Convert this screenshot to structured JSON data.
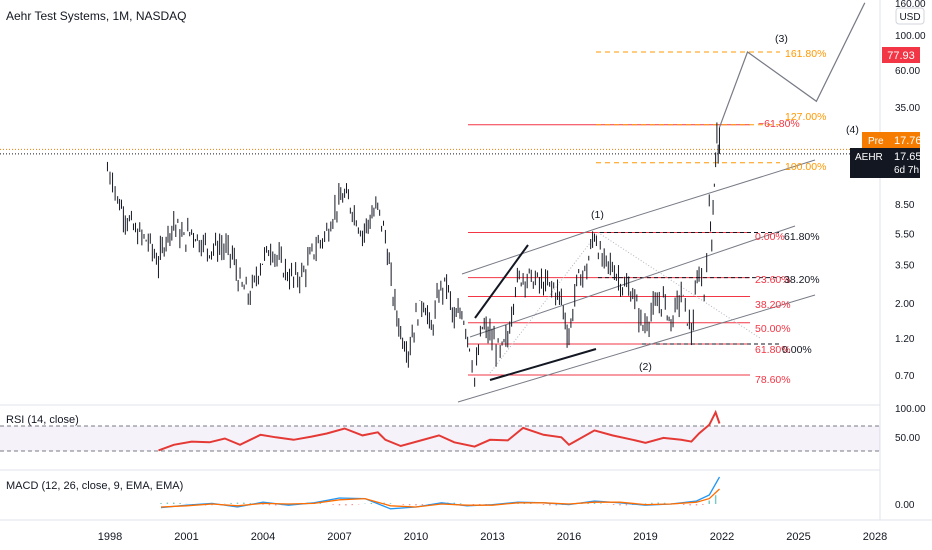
{
  "header": {
    "title": "Aehr Test Systems, 1M, NASDAQ"
  },
  "currency_badge": "USD",
  "price_tags": [
    {
      "label": "",
      "value": "77.93",
      "bg": "#f23645",
      "fg": "#ffffff"
    },
    {
      "label": "Pre",
      "value": "17.76",
      "bg": "#f57c00",
      "fg": "#ffffff"
    },
    {
      "label": "AEHR",
      "value": "17.65",
      "sub": "6d 7h",
      "bg": "#131722",
      "fg": "#ffffff"
    }
  ],
  "fib_labels": {
    "ext_161": "161.80%",
    "ext_127": "127.00%",
    "ext_100": "100.00%",
    "ret_m618": "−61.80%",
    "ret_0": "0.00%",
    "ret_236": "23.60%",
    "ret_382": "38.20%",
    "ret_50": "50.00%",
    "ret_618": "61.80%",
    "ret_786": "78.60%",
    "r2_618": "61.80%",
    "r2_382": "38.20%",
    "r2_0": "0.00%"
  },
  "waves": {
    "w1": "(1)",
    "w2": "(2)",
    "w3": "(3)",
    "w4": "(4)"
  },
  "rsi": {
    "label": "RSI (14, close)",
    "ticks": [
      "100.00",
      "50.00"
    ]
  },
  "macd": {
    "label": "MACD (12, 26, close, 9, EMA, EMA)",
    "ticks": [
      "0.00"
    ]
  },
  "colors": {
    "price": "#131722",
    "fib_red": "#f23645",
    "fib_orange": "#ff9800",
    "rsi_line": "#e53935",
    "macd_line": "#2196f3",
    "signal_line": "#ff6d00",
    "channel": "#787b86"
  },
  "chart_data": {
    "type": "candlestick",
    "title": "Aehr Test Systems, 1M, NASDAQ",
    "y_scale": "log",
    "y_ticks": [
      0.7,
      1.2,
      2.0,
      3.5,
      5.5,
      8.5,
      35.0,
      60.0,
      100.0,
      160.0
    ],
    "y_tick_labels": [
      "0.70",
      "1.20",
      "2.00",
      "3.50",
      "5.50",
      "8.50",
      "35.00",
      "60.00",
      "100.00",
      "160.00"
    ],
    "x_ticks": [
      "1998",
      "2001",
      "2004",
      "2007",
      "2010",
      "2013",
      "2016",
      "2019",
      "2022",
      "2025",
      "2028"
    ],
    "price_series": {
      "name": "AEHR",
      "points": [
        [
          1997.9,
          14.0
        ],
        [
          1998.1,
          12.5
        ],
        [
          1998.3,
          9.0
        ],
        [
          1998.6,
          7.2
        ],
        [
          1999.0,
          5.6
        ],
        [
          1999.5,
          4.9
        ],
        [
          1999.9,
          3.6
        ],
        [
          2000.2,
          5.2
        ],
        [
          2000.5,
          6.5
        ],
        [
          2000.9,
          5.0
        ],
        [
          2001.2,
          5.8
        ],
        [
          2001.5,
          5.0
        ],
        [
          2001.9,
          4.4
        ],
        [
          2002.3,
          4.6
        ],
        [
          2002.8,
          4.0
        ],
        [
          2003.1,
          2.6
        ],
        [
          2003.5,
          2.2
        ],
        [
          2003.9,
          3.5
        ],
        [
          2004.3,
          4.5
        ],
        [
          2004.8,
          3.3
        ],
        [
          2005.2,
          2.8
        ],
        [
          2005.6,
          3.1
        ],
        [
          2006.0,
          4.3
        ],
        [
          2006.5,
          5.6
        ],
        [
          2006.9,
          8.3
        ],
        [
          2007.2,
          9.5
        ],
        [
          2007.5,
          8.0
        ],
        [
          2007.9,
          5.5
        ],
        [
          2008.2,
          6.8
        ],
        [
          2008.5,
          8.0
        ],
        [
          2008.8,
          5.3
        ],
        [
          2009.1,
          2.2
        ],
        [
          2009.4,
          1.3
        ],
        [
          2009.7,
          1.0
        ],
        [
          2010.0,
          1.6
        ],
        [
          2010.3,
          2.1
        ],
        [
          2010.6,
          1.3
        ],
        [
          2010.9,
          2.3
        ],
        [
          2011.2,
          2.7
        ],
        [
          2011.5,
          1.5
        ],
        [
          2011.8,
          1.8
        ],
        [
          2012.1,
          1.1
        ],
        [
          2012.3,
          0.66
        ],
        [
          2012.6,
          1.4
        ],
        [
          2012.9,
          1.25
        ],
        [
          2013.3,
          0.95
        ],
        [
          2013.6,
          1.2
        ],
        [
          2013.9,
          2.6
        ],
        [
          2014.2,
          3.0
        ],
        [
          2014.6,
          2.8
        ],
        [
          2015.0,
          2.6
        ],
        [
          2015.4,
          2.5
        ],
        [
          2015.7,
          2.1
        ],
        [
          2016.0,
          1.2
        ],
        [
          2016.3,
          2.7
        ],
        [
          2016.7,
          3.3
        ],
        [
          2017.0,
          5.6
        ],
        [
          2017.3,
          3.6
        ],
        [
          2017.7,
          3.4
        ],
        [
          2018.1,
          2.6
        ],
        [
          2018.5,
          2.3
        ],
        [
          2018.9,
          1.4
        ],
        [
          2019.3,
          1.8
        ],
        [
          2019.7,
          2.1
        ],
        [
          2020.0,
          1.5
        ],
        [
          2020.4,
          2.3
        ],
        [
          2020.8,
          1.3
        ],
        [
          2021.1,
          3.3
        ],
        [
          2021.3,
          2.3
        ],
        [
          2021.5,
          7.5
        ],
        [
          2021.6,
          5.5
        ],
        [
          2021.7,
          11.5
        ],
        [
          2021.8,
          23.0
        ],
        [
          2021.9,
          17.65
        ]
      ]
    },
    "projection": [
      [
        2021.9,
        26.0
      ],
      [
        2023.0,
        78.0
      ],
      [
        2025.7,
        38.0
      ],
      [
        2027.6,
        160.0
      ]
    ],
    "fib_levels_main": [
      {
        "label": "−61.80%",
        "value": 27.0
      },
      {
        "label": "0.00%",
        "value": 5.6
      },
      {
        "label": "23.60%",
        "value": 2.9
      },
      {
        "label": "38.20%",
        "value": 2.2
      },
      {
        "label": "50.00%",
        "value": 1.5
      },
      {
        "label": "61.80%",
        "value": 1.1
      },
      {
        "label": "78.60%",
        "value": 0.7
      }
    ],
    "fib_levels_extension": [
      {
        "label": "161.80%",
        "value": 78.0
      },
      {
        "label": "127.00%",
        "value": 27.0
      },
      {
        "label": "100.00%",
        "value": 15.5
      }
    ],
    "last_price": 17.65,
    "premarket_price": 17.76,
    "target_price": 77.93,
    "rsi": {
      "name": "RSI (14, close)",
      "levels": [
        70,
        30
      ],
      "points": [
        [
          1999.9,
          31
        ],
        [
          2000.5,
          40
        ],
        [
          2001.2,
          45
        ],
        [
          2001.9,
          44
        ],
        [
          2002.5,
          50
        ],
        [
          2003.1,
          40
        ],
        [
          2003.9,
          56
        ],
        [
          2004.5,
          52
        ],
        [
          2005.2,
          48
        ],
        [
          2005.9,
          53
        ],
        [
          2006.5,
          58
        ],
        [
          2007.2,
          66
        ],
        [
          2007.9,
          55
        ],
        [
          2008.5,
          60
        ],
        [
          2008.8,
          48
        ],
        [
          2009.4,
          38
        ],
        [
          2010.2,
          47
        ],
        [
          2010.9,
          55
        ],
        [
          2011.5,
          44
        ],
        [
          2012.3,
          37
        ],
        [
          2012.9,
          48
        ],
        [
          2013.6,
          47
        ],
        [
          2014.2,
          67
        ],
        [
          2015.0,
          56
        ],
        [
          2015.7,
          52
        ],
        [
          2016.0,
          40
        ],
        [
          2017.0,
          63
        ],
        [
          2017.7,
          55
        ],
        [
          2018.5,
          48
        ],
        [
          2019.0,
          43
        ],
        [
          2019.7,
          51
        ],
        [
          2020.4,
          48
        ],
        [
          2020.8,
          45
        ],
        [
          2021.1,
          58
        ],
        [
          2021.5,
          72
        ],
        [
          2021.75,
          92
        ],
        [
          2021.9,
          74
        ]
      ]
    },
    "macd": {
      "name": "MACD (12, 26, close, 9, EMA, EMA)",
      "macd_points": [
        [
          2000.0,
          -0.6
        ],
        [
          2001.0,
          -0.2
        ],
        [
          2002.0,
          0.1
        ],
        [
          2003.0,
          -0.5
        ],
        [
          2004.0,
          0.3
        ],
        [
          2005.0,
          -0.2
        ],
        [
          2006.0,
          0.2
        ],
        [
          2007.0,
          1.0
        ],
        [
          2008.0,
          0.9
        ],
        [
          2009.0,
          -0.8
        ],
        [
          2010.0,
          -0.5
        ],
        [
          2011.0,
          0.2
        ],
        [
          2012.0,
          -0.3
        ],
        [
          2013.0,
          -0.1
        ],
        [
          2014.0,
          0.3
        ],
        [
          2015.0,
          0.2
        ],
        [
          2016.0,
          -0.1
        ],
        [
          2017.0,
          0.5
        ],
        [
          2018.0,
          0.2
        ],
        [
          2019.0,
          -0.2
        ],
        [
          2020.0,
          0.0
        ],
        [
          2021.0,
          0.5
        ],
        [
          2021.5,
          1.5
        ],
        [
          2021.9,
          4.5
        ]
      ],
      "signal_points": [
        [
          2000.0,
          -0.5
        ],
        [
          2001.0,
          -0.3
        ],
        [
          2002.0,
          0.0
        ],
        [
          2003.0,
          -0.3
        ],
        [
          2004.0,
          0.1
        ],
        [
          2005.0,
          0.0
        ],
        [
          2006.0,
          0.1
        ],
        [
          2007.0,
          0.7
        ],
        [
          2008.0,
          0.9
        ],
        [
          2009.0,
          -0.3
        ],
        [
          2010.0,
          -0.5
        ],
        [
          2011.0,
          0.0
        ],
        [
          2012.0,
          -0.2
        ],
        [
          2013.0,
          -0.2
        ],
        [
          2014.0,
          0.2
        ],
        [
          2015.0,
          0.2
        ],
        [
          2016.0,
          0.0
        ],
        [
          2017.0,
          0.3
        ],
        [
          2018.0,
          0.3
        ],
        [
          2019.0,
          -0.1
        ],
        [
          2020.0,
          0.0
        ],
        [
          2021.0,
          0.3
        ],
        [
          2021.5,
          0.9
        ],
        [
          2021.9,
          2.5
        ]
      ]
    }
  }
}
